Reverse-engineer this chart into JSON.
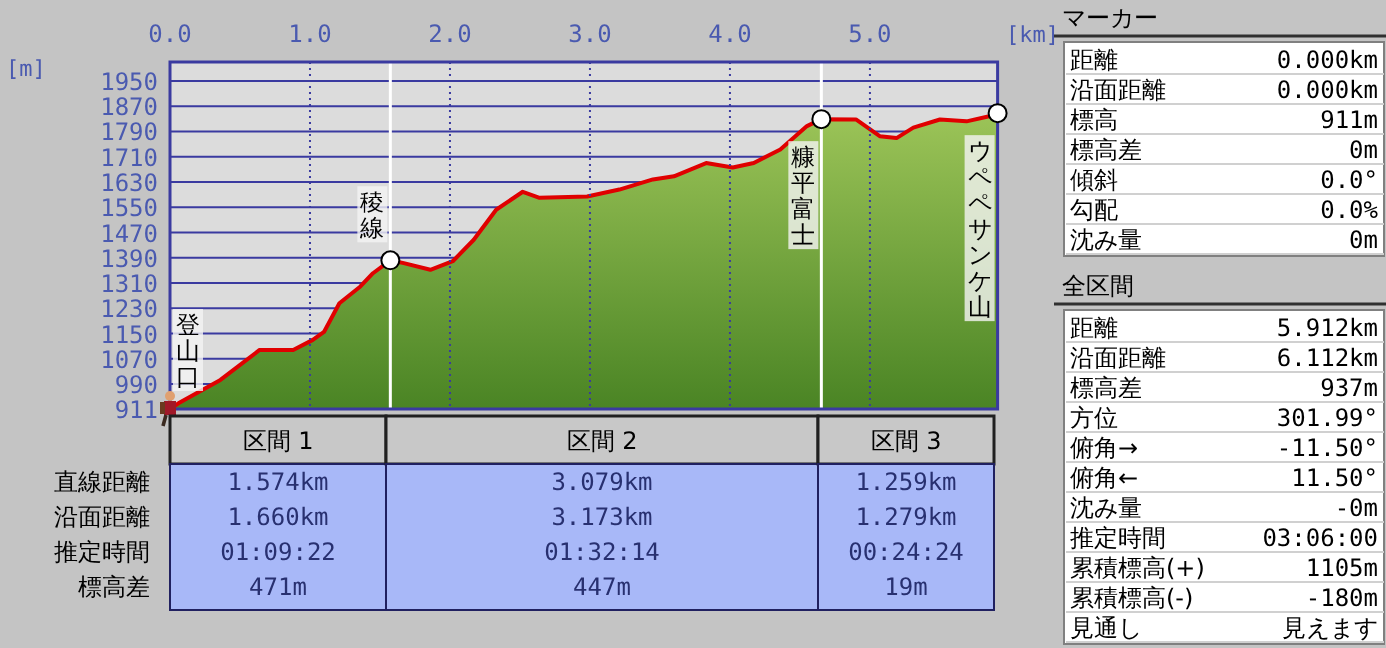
{
  "chart_data": [
    {
      "type": "area",
      "xlabel": "[km]",
      "ylabel": "[m]",
      "xlim": [
        0,
        5.912
      ],
      "ylim": [
        911,
        2010
      ],
      "xticks": [
        {
          "value": 0,
          "label": "0.0"
        },
        {
          "value": 1,
          "label": "1.0"
        },
        {
          "value": 2,
          "label": "2.0"
        },
        {
          "value": 3,
          "label": "3.0"
        },
        {
          "value": 4,
          "label": "4.0"
        },
        {
          "value": 5,
          "label": "5.0"
        }
      ],
      "yticks": [
        911,
        990,
        1070,
        1150,
        1230,
        1310,
        1390,
        1470,
        1550,
        1630,
        1710,
        1790,
        1870,
        1950
      ],
      "grid": true,
      "series": [
        {
          "type": "area",
          "color": "#e00000",
          "x": [
            0,
            0.06,
            0.36,
            0.64,
            0.88,
            1.02,
            1.1,
            1.21,
            1.36,
            1.45,
            1.574,
            1.67,
            1.86,
            2.02,
            2.17,
            2.33,
            2.52,
            2.64,
            2.98,
            3.21,
            3.45,
            3.6,
            3.83,
            4.02,
            4.17,
            4.36,
            4.55,
            4.653,
            4.9,
            5.07,
            5.19,
            5.31,
            5.5,
            5.69,
            5.86,
            5.912
          ],
          "values": [
            911,
            929,
            1003,
            1098,
            1098,
            1130,
            1155,
            1246,
            1299,
            1341,
            1382,
            1373,
            1352,
            1379,
            1447,
            1542,
            1599,
            1580,
            1584,
            1606,
            1638,
            1648,
            1690,
            1676,
            1690,
            1733,
            1807,
            1829,
            1828,
            1775,
            1769,
            1802,
            1828,
            1822,
            1839,
            1848
          ]
        },
        {
          "type": "scatter",
          "marker": "circle",
          "color": "#ffffff",
          "x": [
            1.574,
            4.653,
            5.912
          ],
          "values": [
            1382,
            1829,
            1848
          ]
        }
      ],
      "ref_lines": [
        {
          "axis": "x",
          "value": 1.574,
          "color": "#ffffff"
        },
        {
          "axis": "x",
          "value": 4.653,
          "color": "#ffffff"
        }
      ],
      "annotations": [
        {
          "text": "登山口",
          "x": 0,
          "y": 911
        },
        {
          "text": "稜線",
          "x": 1.574,
          "y": 1382
        },
        {
          "text": "糠平富士",
          "x": 4.653,
          "y": 1829
        },
        {
          "text": "ウペペサンケ山",
          "x": 5.912,
          "y": 1848
        }
      ]
    },
    {
      "type": "other",
      "categories": [
        "区間 1",
        "区間 2",
        "区間 3"
      ],
      "y_categories": [
        "直線距離",
        "沿面距離",
        "推定時間",
        "標高差"
      ],
      "cell_labels": [
        [
          "1.574km",
          "3.079km",
          "1.259km"
        ],
        [
          "1.660km",
          "3.173km",
          "1.279km"
        ],
        [
          "01:09:22",
          "01:32:14",
          "00:24:24"
        ],
        [
          "471m",
          "447m",
          "19m"
        ]
      ]
    },
    {
      "type": "other",
      "title": "マーカー",
      "y_categories": [
        "距離",
        "沿面距離",
        "標高",
        "標高差",
        "傾斜",
        "勾配",
        "沈み量"
      ],
      "cell_labels": [
        [
          "0.000km"
        ],
        [
          "0.000km"
        ],
        [
          "911m"
        ],
        [
          "0m"
        ],
        [
          "0.0°"
        ],
        [
          "0.0%"
        ],
        [
          "0m"
        ]
      ]
    },
    {
      "type": "other",
      "title": "全区間",
      "y_categories": [
        "距離",
        "沿面距離",
        "標高差",
        "方位",
        "俯角→",
        "俯角←",
        "沈み量",
        "推定時間",
        "累積標高(+)",
        "累積標高(-)",
        "見通し"
      ],
      "cell_labels": [
        [
          "5.912km"
        ],
        [
          "6.112km"
        ],
        [
          "937m"
        ],
        [
          "301.99°"
        ],
        [
          "-11.50°"
        ],
        [
          "11.50°"
        ],
        [
          "-0m"
        ],
        [
          "03:06:00"
        ],
        [
          "1105m"
        ],
        [
          "-180m"
        ],
        [
          "見えます"
        ]
      ]
    }
  ]
}
